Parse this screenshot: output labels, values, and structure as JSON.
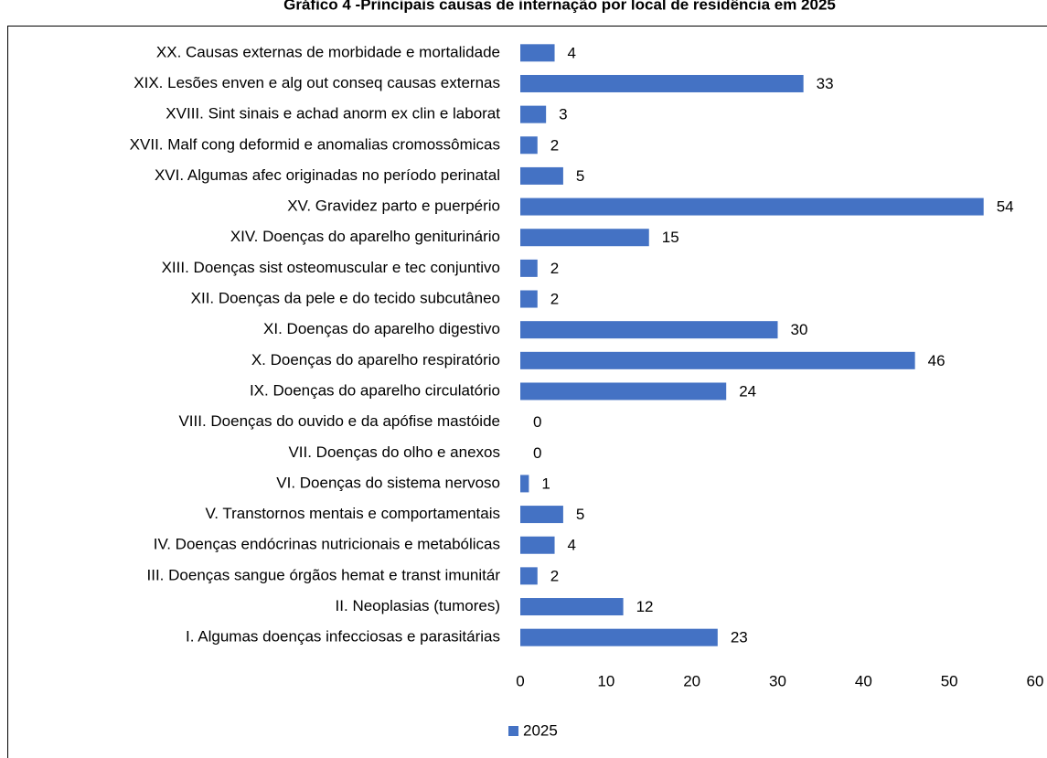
{
  "chart_data": {
    "type": "bar",
    "orientation": "horizontal",
    "title": "Gráfico 4 -Principais causas de internação por local de residência em 2025",
    "categories": [
      "I. Algumas doenças infecciosas e parasitárias",
      "II. Neoplasias (tumores)",
      "III. Doenças sangue órgãos hemat e transt imunitár",
      "IV. Doenças endócrinas nutricionais e metabólicas",
      "V. Transtornos mentais e comportamentais",
      "VI. Doenças do sistema nervoso",
      "VII. Doenças do olho e anexos",
      "VIII. Doenças do ouvido e da apófise mastóide",
      "IX. Doenças do aparelho circulatório",
      "X. Doenças do aparelho respiratório",
      "XI. Doenças do aparelho digestivo",
      "XII. Doenças da pele e do tecido subcutâneo",
      "XIII. Doenças sist osteomuscular e tec conjuntivo",
      "XIV. Doenças do aparelho geniturinário",
      "XV. Gravidez parto e puerpério",
      "XVI. Algumas afec originadas no período perinatal",
      "XVII. Malf cong deformid e anomalias cromossômicas",
      "XVIII. Sint sinais e achad anorm ex clin e laborat",
      "XIX. Lesões enven e alg out conseq causas externas",
      "XX. Causas externas de morbidade e mortalidade"
    ],
    "series": [
      {
        "name": "2025",
        "color": "#4472c4",
        "values": [
          23,
          12,
          2,
          4,
          5,
          1,
          0,
          0,
          24,
          46,
          30,
          2,
          2,
          15,
          54,
          5,
          2,
          3,
          33,
          4
        ]
      }
    ],
    "xlim": [
      0,
      60
    ],
    "xticks": [
      0,
      10,
      20,
      30,
      40,
      50,
      60
    ],
    "grid": false,
    "legend": "bottom"
  }
}
